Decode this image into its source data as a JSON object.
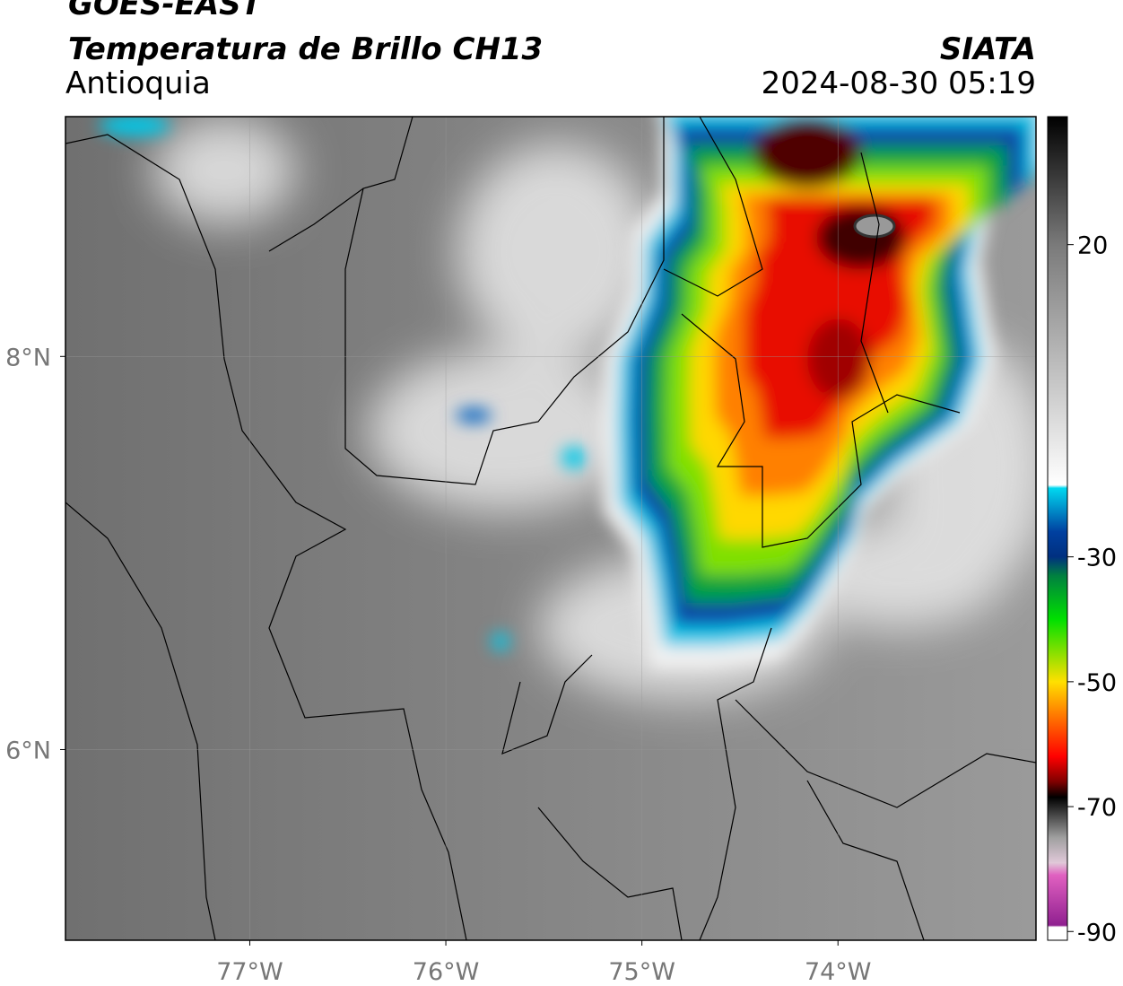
{
  "header": {
    "title": "GOES-EAST",
    "subtitle": "Temperatura de Brillo CH13",
    "region": "Antioquia",
    "agency": "SIATA",
    "datetime": "2024-08-30 05:19"
  },
  "map": {
    "xlim": [
      -77.94,
      -72.99
    ],
    "ylim": [
      5.03,
      9.22
    ],
    "xticks": [
      {
        "value": -77,
        "label": "77°W"
      },
      {
        "value": -76,
        "label": "76°W"
      },
      {
        "value": -75,
        "label": "75°W"
      },
      {
        "value": -74,
        "label": "74°W"
      }
    ],
    "yticks": [
      {
        "value": 8,
        "label": "8°N"
      },
      {
        "value": 6,
        "label": "6°N"
      }
    ],
    "grid": true
  },
  "colorbar": {
    "lim": [
      -91.4,
      40.5
    ],
    "ticks": [
      20,
      -30,
      -50,
      -70,
      -90
    ],
    "colormap": [
      {
        "value": 40.5,
        "color": "#000000"
      },
      {
        "value": 20,
        "color": "#7a7a7a"
      },
      {
        "value": -18.5,
        "color": "#ffffff"
      },
      {
        "value": -19,
        "color": "#00d8f0"
      },
      {
        "value": -26,
        "color": "#0040a0"
      },
      {
        "value": -30,
        "color": "#003080"
      },
      {
        "value": -33,
        "color": "#008040"
      },
      {
        "value": -40,
        "color": "#00e000"
      },
      {
        "value": -50,
        "color": "#ffe000"
      },
      {
        "value": -55,
        "color": "#ff8000"
      },
      {
        "value": -62,
        "color": "#ff0000"
      },
      {
        "value": -66,
        "color": "#800000"
      },
      {
        "value": -68.5,
        "color": "#000000"
      },
      {
        "value": -75,
        "color": "#a0a0a0"
      },
      {
        "value": -79,
        "color": "#e0c8d8"
      },
      {
        "value": -81,
        "color": "#e060c0"
      },
      {
        "value": -89,
        "color": "#902090"
      },
      {
        "value": -89.3,
        "color": "#ffffff"
      },
      {
        "value": -91.4,
        "color": "#ffffff"
      }
    ]
  }
}
